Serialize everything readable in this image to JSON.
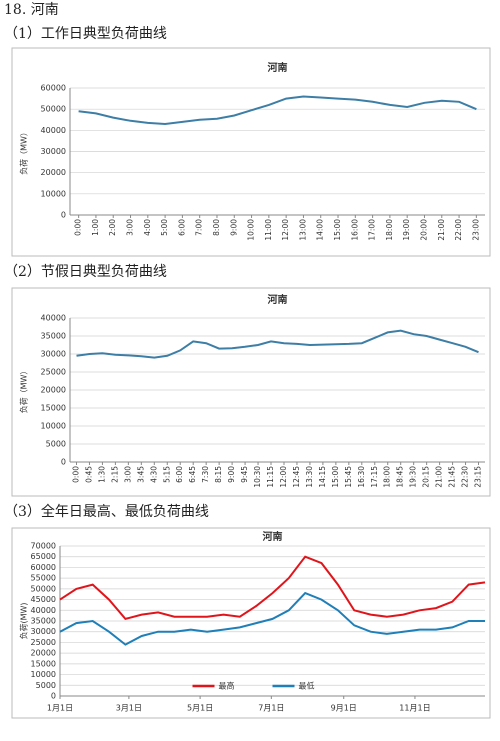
{
  "heading": "18. 河南",
  "sections": [
    "（1）工作日典型负荷曲线",
    "（2）节假日典型负荷曲线",
    "（3）全年日最高、最低负荷曲线"
  ],
  "chart_data": [
    {
      "type": "line",
      "title": "河南",
      "ylabel": "负荷（MW）",
      "categories": [
        "0:00",
        "1:00",
        "2:00",
        "3:00",
        "4:00",
        "5:00",
        "6:00",
        "7:00",
        "8:00",
        "9:00",
        "10:00",
        "11:00",
        "12:00",
        "13:00",
        "14:00",
        "15:00",
        "16:00",
        "17:00",
        "18:00",
        "19:00",
        "20:00",
        "21:00",
        "22:00",
        "23:00"
      ],
      "series": [
        {
          "color": "#3d7ea6",
          "values": [
            49000,
            48000,
            46000,
            44500,
            43500,
            43000,
            44000,
            45000,
            45500,
            47000,
            49500,
            52000,
            55000,
            56000,
            55500,
            55000,
            54500,
            53500,
            52000,
            51000,
            53000,
            54000,
            53500,
            50000
          ]
        }
      ],
      "ylim": [
        0,
        60000
      ],
      "yticks": [
        0,
        10000,
        20000,
        30000,
        40000,
        50000,
        60000
      ],
      "grid": true
    },
    {
      "type": "line",
      "title": "河南",
      "ylabel": "负荷（MW）",
      "categories": [
        "0:00",
        "0:45",
        "1:30",
        "2:15",
        "3:00",
        "3:45",
        "4:30",
        "5:15",
        "6:00",
        "6:45",
        "7:30",
        "8:15",
        "9:00",
        "9:45",
        "10:30",
        "11:15",
        "12:00",
        "12:45",
        "13:30",
        "14:15",
        "15:00",
        "15:45",
        "16:30",
        "17:15",
        "18:00",
        "18:45",
        "19:30",
        "20:15",
        "21:00",
        "21:45",
        "22:30",
        "23:15"
      ],
      "series": [
        {
          "color": "#3d7ea6",
          "values": [
            29500,
            30000,
            30200,
            29800,
            29600,
            29400,
            29000,
            29500,
            31000,
            33500,
            33000,
            31500,
            31600,
            32000,
            32500,
            33500,
            33000,
            32800,
            32500,
            32600,
            32700,
            32800,
            33000,
            34500,
            36000,
            36500,
            35500,
            35000,
            34000,
            33000,
            32000,
            30500
          ]
        }
      ],
      "ylim": [
        0,
        40000
      ],
      "yticks": [
        0,
        5000,
        10000,
        15000,
        20000,
        25000,
        30000,
        35000,
        40000
      ],
      "grid": true
    },
    {
      "type": "line",
      "title": "河南",
      "ylabel": "负荷(MW)",
      "x": [
        1,
        15,
        29,
        43,
        57,
        71,
        85,
        99,
        113,
        127,
        141,
        155,
        169,
        183,
        197,
        211,
        225,
        239,
        253,
        267,
        281,
        295,
        309,
        323,
        337,
        351,
        365
      ],
      "xlim": [
        1,
        365
      ],
      "xticks": [
        {
          "value": 1,
          "label": "1月1日"
        },
        {
          "value": 60,
          "label": "3月1日"
        },
        {
          "value": 121,
          "label": "5月1日"
        },
        {
          "value": 182,
          "label": "7月1日"
        },
        {
          "value": 244,
          "label": "9月1日"
        },
        {
          "value": 305,
          "label": "11月1日"
        }
      ],
      "series": [
        {
          "name": "最高",
          "color": "#e0151b",
          "values": [
            45000,
            50000,
            52000,
            45000,
            36000,
            38000,
            39000,
            37000,
            37000,
            37000,
            38000,
            37000,
            42000,
            48000,
            55000,
            65000,
            62000,
            52000,
            40000,
            38000,
            37000,
            38000,
            40000,
            41000,
            44000,
            52000,
            53000
          ]
        },
        {
          "name": "最低",
          "color": "#1f7fb8",
          "values": [
            30000,
            34000,
            35000,
            30000,
            24000,
            28000,
            30000,
            30000,
            31000,
            30000,
            31000,
            32000,
            34000,
            36000,
            40000,
            48000,
            45000,
            40000,
            33000,
            30000,
            29000,
            30000,
            31000,
            31000,
            32000,
            35000,
            35000
          ]
        }
      ],
      "ylim": [
        0,
        70000
      ],
      "yticks": [
        0,
        5000,
        10000,
        15000,
        20000,
        25000,
        30000,
        35000,
        40000,
        45000,
        50000,
        55000,
        60000,
        65000,
        70000
      ],
      "grid": true,
      "legend": "bottom"
    }
  ]
}
